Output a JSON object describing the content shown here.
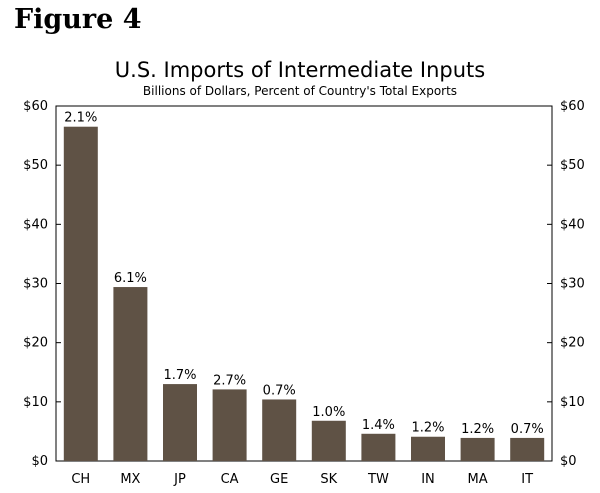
{
  "figure_label": "Figure 4",
  "chart_data": {
    "type": "bar",
    "title": "U.S. Imports of Intermediate Inputs",
    "subtitle": "Billions of Dollars, Percent of Country's Total Exports",
    "categories": [
      "CH",
      "MX",
      "JP",
      "CA",
      "GE",
      "SK",
      "TW",
      "IN",
      "MA",
      "IT"
    ],
    "values": [
      56.5,
      29.4,
      13.0,
      12.1,
      10.4,
      6.8,
      4.6,
      4.1,
      3.9,
      3.9
    ],
    "data_labels": [
      "2.1%",
      "6.1%",
      "1.7%",
      "2.7%",
      "0.7%",
      "1.0%",
      "1.4%",
      "1.2%",
      "1.2%",
      "0.7%"
    ],
    "ylim": [
      0,
      60
    ],
    "yticks": [
      0,
      10,
      20,
      30,
      40,
      50,
      60
    ],
    "ytick_labels": [
      "$0",
      "$10",
      "$20",
      "$30",
      "$40",
      "$50",
      "$60"
    ],
    "y_axis_sides": "left and right",
    "grid": false,
    "bar_color": "#5f5245"
  }
}
